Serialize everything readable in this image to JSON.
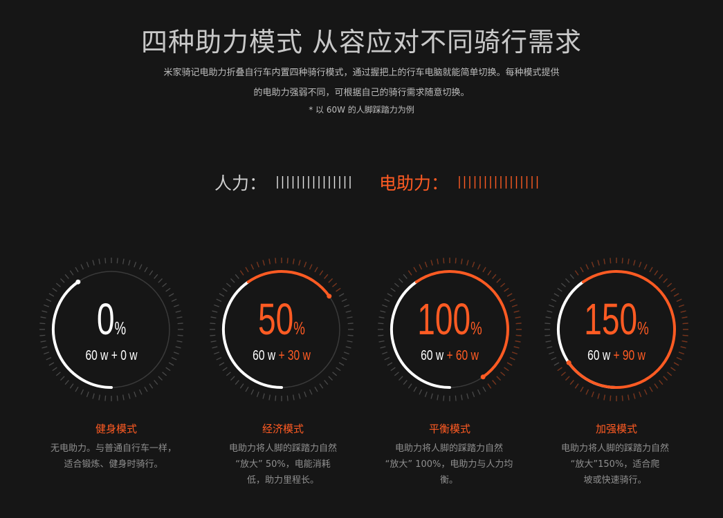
{
  "header": {
    "title": "四种助力模式 从容应对不同骑行需求",
    "desc_line1": "米家骑记电助力折叠自行车内置四种骑行模式，通过握把上的行车电脑就能简单切换。每种模式提供",
    "desc_line2": "的电助力强弱不同，可根据自己的骑行需求随意切换。",
    "note": "* 以 60W 的人脚踩踏力为例"
  },
  "legend": {
    "human_label": "人力：",
    "electric_label": "电助力："
  },
  "colors": {
    "accent": "#ff5b23",
    "white": "#ffffff",
    "muted": "#8f8f8f",
    "bg": "#161616"
  },
  "modes": [
    {
      "percent": "0",
      "unit": "%",
      "formula_base": "60 w",
      "formula_plus": "+ 0 w",
      "name": "健身模式",
      "desc": "无电助力。与普通自行车一样，适合锻炼、健身时骑行。",
      "desc_lines": [
        "无电助力。与普通自行车一样，",
        "适合锻炼、健身时骑行。"
      ],
      "assist_fraction": 0
    },
    {
      "percent": "50",
      "unit": "%",
      "formula_base": "60 w",
      "formula_plus": "+ 30 w",
      "name": "经济模式",
      "desc_lines": [
        "电助力将人脚的踩踏力自然",
        "“放大” 50%，电能消耗",
        "低，助力里程长。"
      ],
      "assist_fraction": 0.5
    },
    {
      "percent": "100",
      "unit": "%",
      "formula_base": "60 w",
      "formula_plus": "+ 60 w",
      "name": "平衡模式",
      "desc_lines": [
        "电助力将人脚的踩踏力自然",
        "“放大” 100%，电助力与人力均",
        "衡。"
      ],
      "assist_fraction": 1.0
    },
    {
      "percent": "150",
      "unit": "%",
      "formula_base": "60 w",
      "formula_plus": "+ 90 w",
      "name": "加强模式",
      "desc_lines": [
        "电助力将人脚的踩踏力自然",
        "“放大”150%，适合爬",
        "坡或快速骑行。"
      ],
      "assist_fraction": 1.5
    }
  ]
}
